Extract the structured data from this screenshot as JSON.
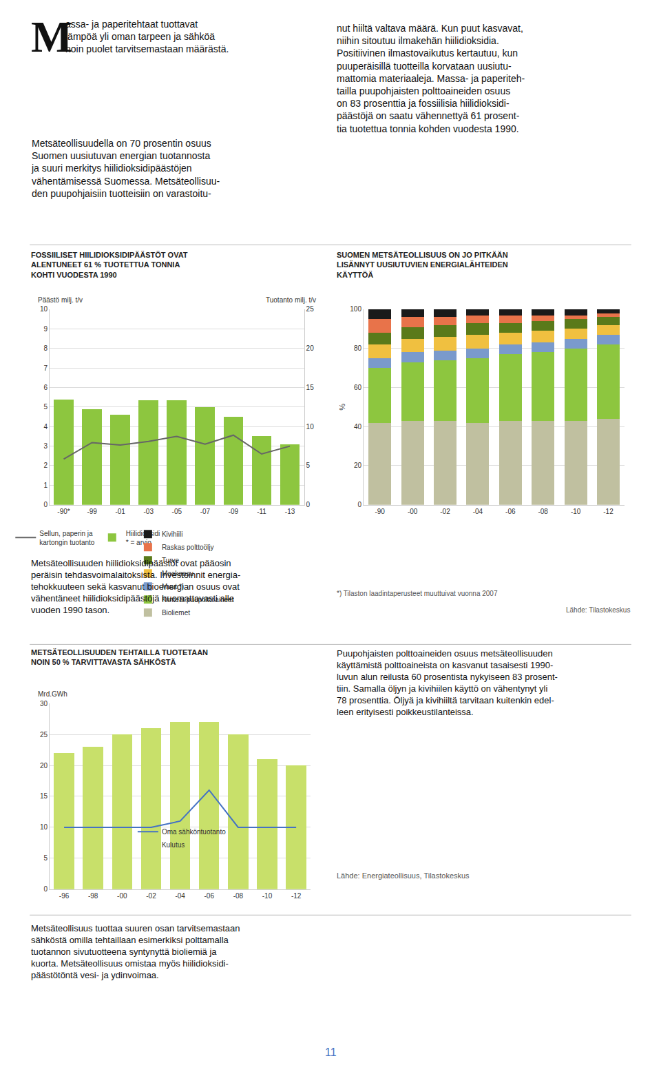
{
  "chart_data": [
    {
      "type": "bar",
      "title": "FOSSIILISET HIILIDIOKSIDIPÄÄSTÖT OVAT\nALENTUNEET 61 % TUOTETTUA TONNIA\nKOHTI VUODESTA 1990",
      "categories": [
        "-90*",
        "-99",
        "-01",
        "-03",
        "-05",
        "-07",
        "-09",
        "-11",
        "-13"
      ],
      "series": [
        {
          "name": "Hiilidioksidi\n* = arvio",
          "type": "bar",
          "color": "#8dc63f",
          "values": [
            5.4,
            4.9,
            4.6,
            5.35,
            5.35,
            5.0,
            4.5,
            3.5,
            3.1
          ]
        },
        {
          "name": "Sellun, paperin ja\nkartongin tuotanto",
          "type": "line",
          "color": "#666666",
          "axis": "y2",
          "values": [
            5.85,
            7.95,
            7.65,
            8.1,
            8.75,
            7.75,
            8.9,
            6.5,
            7.5
          ]
        }
      ],
      "ylabel": "Päästö milj. t/v",
      "y2label": "Tuotanto milj. t/v",
      "ylim": [
        0,
        10
      ],
      "yticks": [
        0,
        1,
        2,
        3,
        4,
        5,
        6,
        7,
        8,
        9,
        10
      ],
      "y2lim": [
        0,
        25
      ],
      "y2ticks": [
        0,
        5,
        10,
        15,
        20,
        25
      ],
      "grid": true,
      "legend": "bottom",
      "annotations": [
        "M",
        "assa- ja paperitehtaat tuottavat\nlämpöä yli oman tarpeen ja sähköä\nnoin puolet tarvitsemastaan määrästä.",
        "Metsäteollisuudella on 70 prosentin osuus\nSuomen uusiutuvan energian tuotannosta\nja suuri merkitys hiilidioksidipäästöjen\nvähentämisessä Suomessa. Metsäteollisuu-\nden puupohjaisiin tuotteisiin on varastoitu-",
        "nut hiiltä valtava määrä. Kun puut kasvavat,\nniihin sitoutuu ilmakehän hiilidioksidia.\nPositiivinen ilmastovaikutus kertautuu, kun\npuuperäisillä tuotteilla korvataan uusiutu-\nmattomia materiaaleja. Massa- ja paperiteh-\ntailla puupohjaisten polttoaineiden osuus\non 83 prosenttia ja fossiilisia hiilidioksidi-\npäästöjä on saatu vähennettyä 61 prosent-\ntia tuotettua tonnia kohden vuodesta 1990.",
        "Metsäteollisuuden hiilidioksidipäästöt ovat pääosin\nperäisin tehdasvoimalaitoksista. Investoinnit energia-\ntehokkuuteen sekä kasvanut bioenergian osuus ovat\nvähentäneet hiilidioksidipäästöjä huomattavasti alle\nvuoden 1990 tason."
      ]
    },
    {
      "type": "bar",
      "stacked": true,
      "title": "SUOMEN METSÄTEOLLISUUS ON JO PITKÄÄN\nLISÄNNYT UUSIUTUVIEN ENERGIALÄHTEIDEN\nKÄYTTÖÄ",
      "categories": [
        "-90",
        "-00",
        "-02",
        "-04",
        "-06",
        "-08",
        "-10",
        "-12"
      ],
      "series": [
        {
          "name": "Bioliemet",
          "color": "#c0c0a0",
          "values": [
            42,
            43,
            43,
            42,
            43,
            43,
            43,
            44
          ]
        },
        {
          "name": "Kiinteät puupolttoaineet",
          "color": "#8dc63f",
          "values": [
            28,
            30,
            31,
            33,
            34,
            35,
            37,
            38
          ]
        },
        {
          "name": "Muut *)",
          "color": "#7a9acc",
          "values": [
            5,
            5,
            5,
            5,
            5,
            5,
            5,
            5
          ]
        },
        {
          "name": "Maakaasu",
          "color": "#f0c040",
          "values": [
            7,
            7,
            7,
            7,
            6,
            6,
            5,
            5
          ]
        },
        {
          "name": "Turve",
          "color": "#5a7a1a",
          "values": [
            6,
            6,
            6,
            6,
            5,
            5,
            5,
            4
          ]
        },
        {
          "name": "Raskas polttoöljy",
          "color": "#e8734a",
          "values": [
            7,
            5,
            4,
            4,
            4,
            3,
            2,
            2
          ]
        },
        {
          "name": "Kivihiili",
          "color": "#1a1a1a",
          "values": [
            5,
            4,
            4,
            3,
            3,
            3,
            3,
            2
          ]
        }
      ],
      "ylabel": "%",
      "ylim": [
        0,
        100
      ],
      "yticks": [
        0,
        20,
        40,
        60,
        80,
        100
      ],
      "grid": true,
      "legend": "bottom",
      "annotations": [
        "*) Tilaston laadintaperusteet muuttuivat vuonna 2007",
        "Lähde: Tilastokeskus"
      ]
    },
    {
      "type": "bar",
      "title": "METSÄTEOLLISUUDEN TEHTAILLA TUOTETAAN\nNOIN 50 % TARVITTAVASTA SÄHKÖSTÄ",
      "categories": [
        "-96",
        "-98",
        "-00",
        "-02",
        "-04",
        "-06",
        "-08",
        "-10",
        "-12"
      ],
      "series": [
        {
          "name": "Kulutus",
          "type": "bar",
          "color": "#c8e06a",
          "values": [
            22,
            23,
            25,
            26,
            27,
            27,
            25,
            21,
            20
          ]
        },
        {
          "name": "Oma sähköntuotanto",
          "type": "line",
          "color": "#4472c4",
          "values": [
            10,
            10,
            10,
            10,
            11,
            16,
            10,
            10,
            10
          ]
        }
      ],
      "ylabel": "Mrd.GWh",
      "ylim": [
        0,
        30
      ],
      "yticks": [
        0,
        5,
        10,
        15,
        20,
        25,
        30
      ],
      "grid": true,
      "legend": "right",
      "annotations": [
        "Puupohjaisten polttoaineiden osuus metsäteollisuuden\nkäyttämistä polttoaineista on kasvanut tasaisesti 1990-\nluvun alun reilusta 60 prosentista nykyiseen 83 prosent-\ntiin. Samalla öljyn ja kivihiilen käyttö on vähentynyt yli\n78 prosenttia. Öljyä ja kivihiiltä tarvitaan kuitenkin edel-\nleen erityisesti poikkeustilanteissa.",
        "Lähde: Energiateollisuus, Tilastokeskus",
        "Metsäteollisuus tuottaa suuren osan tarvitsemastaan\nsähköstä omilla tehtaillaan esimerkiksi polttamalla\ntuotannon sivutuotteena syntynyttä bioliemiä ja\nkuorta. Metsäteollisuus omistaa myös hiilidioksidi-\npäästötöntä vesi- ja ydinvoimaa.",
        "11"
      ]
    }
  ]
}
